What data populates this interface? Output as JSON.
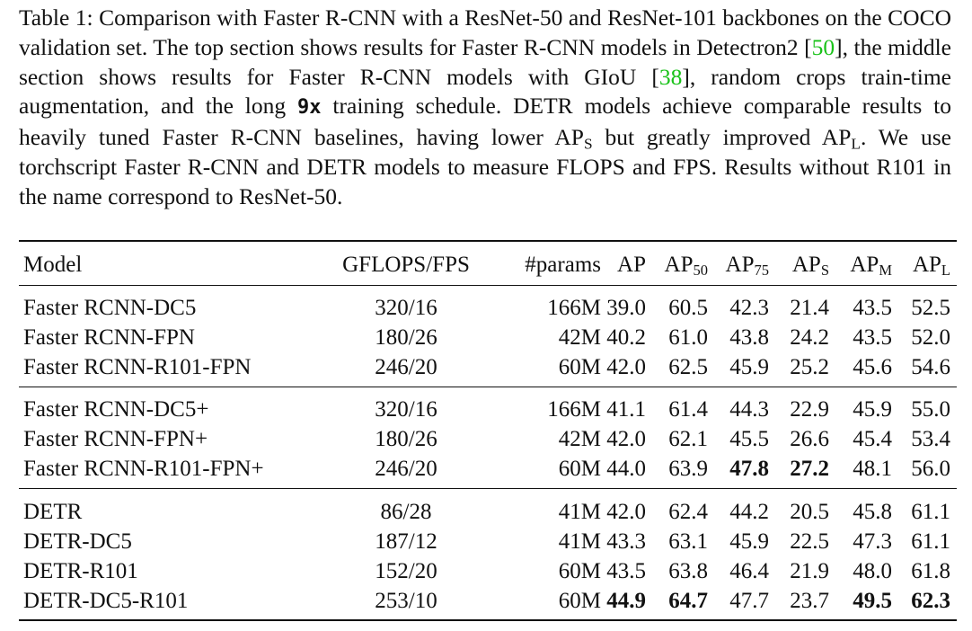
{
  "caption": {
    "p1": "Table 1: Comparison with Faster R-CNN with a ResNet-50 and ResNet-101 backbones on the COCO validation set. The top section shows results for Faster R-CNN models in Detectron2 [",
    "cite1": "50",
    "p2": "], the middle section shows results for Faster R-CNN models with GIoU [",
    "cite2": "38",
    "p3": "], random crops train-time augmentation, and the long ",
    "code": "9x",
    "p4": " training schedule. DETR models achieve comparable results to heavily tuned Faster R-CNN baselines, having lower AP",
    "sub1": "S",
    "p5": " but greatly improved AP",
    "sub2": "L",
    "p6": ". We use torchscript Faster R-CNN and DETR models to measure FLOPS and FPS. Results without R101 in the name correspond to ResNet-50."
  },
  "header": {
    "model": "Model",
    "gflops": "GFLOPS/FPS",
    "params": "#params",
    "ap": "AP",
    "ap50": "AP",
    "ap50_sub": "50",
    "ap75": "AP",
    "ap75_sub": "75",
    "aps": "AP",
    "aps_sub": "S",
    "apm": "AP",
    "apm_sub": "M",
    "apl": "AP",
    "apl_sub": "L"
  },
  "rows": [
    {
      "model": "Faster RCNN-DC5",
      "gf": "320/16",
      "params": "166M",
      "ap": "39.0",
      "ap50": "60.5",
      "ap75": "42.3",
      "aps": "21.4",
      "apm": "43.5",
      "apl": "52.5",
      "bold": []
    },
    {
      "model": "Faster RCNN-FPN",
      "gf": "180/26",
      "params": "42M",
      "ap": "40.2",
      "ap50": "61.0",
      "ap75": "43.8",
      "aps": "24.2",
      "apm": "43.5",
      "apl": "52.0",
      "bold": []
    },
    {
      "model": "Faster RCNN-R101-FPN",
      "gf": "246/20",
      "params": "60M",
      "ap": "42.0",
      "ap50": "62.5",
      "ap75": "45.9",
      "aps": "25.2",
      "apm": "45.6",
      "apl": "54.6",
      "bold": []
    },
    {
      "model": "Faster RCNN-DC5+",
      "gf": "320/16",
      "params": "166M",
      "ap": "41.1",
      "ap50": "61.4",
      "ap75": "44.3",
      "aps": "22.9",
      "apm": "45.9",
      "apl": "55.0",
      "bold": []
    },
    {
      "model": "Faster RCNN-FPN+",
      "gf": "180/26",
      "params": "42M",
      "ap": "42.0",
      "ap50": "62.1",
      "ap75": "45.5",
      "aps": "26.6",
      "apm": "45.4",
      "apl": "53.4",
      "bold": []
    },
    {
      "model": "Faster RCNN-R101-FPN+",
      "gf": "246/20",
      "params": "60M",
      "ap": "44.0",
      "ap50": "63.9",
      "ap75": "47.8",
      "aps": "27.2",
      "apm": "48.1",
      "apl": "56.0",
      "bold": [
        "ap75",
        "aps"
      ]
    },
    {
      "model": "DETR",
      "gf": "86/28",
      "params": "41M",
      "ap": "42.0",
      "ap50": "62.4",
      "ap75": "44.2",
      "aps": "20.5",
      "apm": "45.8",
      "apl": "61.1",
      "bold": []
    },
    {
      "model": "DETR-DC5",
      "gf": "187/12",
      "params": "41M",
      "ap": "43.3",
      "ap50": "63.1",
      "ap75": "45.9",
      "aps": "22.5",
      "apm": "47.3",
      "apl": "61.1",
      "bold": []
    },
    {
      "model": "DETR-R101",
      "gf": "152/20",
      "params": "60M",
      "ap": "43.5",
      "ap50": "63.8",
      "ap75": "46.4",
      "aps": "21.9",
      "apm": "48.0",
      "apl": "61.8",
      "bold": []
    },
    {
      "model": "DETR-DC5-R101",
      "gf": "253/10",
      "params": "60M",
      "ap": "44.9",
      "ap50": "64.7",
      "ap75": "47.7",
      "aps": "23.7",
      "apm": "49.5",
      "apl": "62.3",
      "bold": [
        "ap",
        "ap50",
        "apm",
        "apl"
      ]
    }
  ]
}
